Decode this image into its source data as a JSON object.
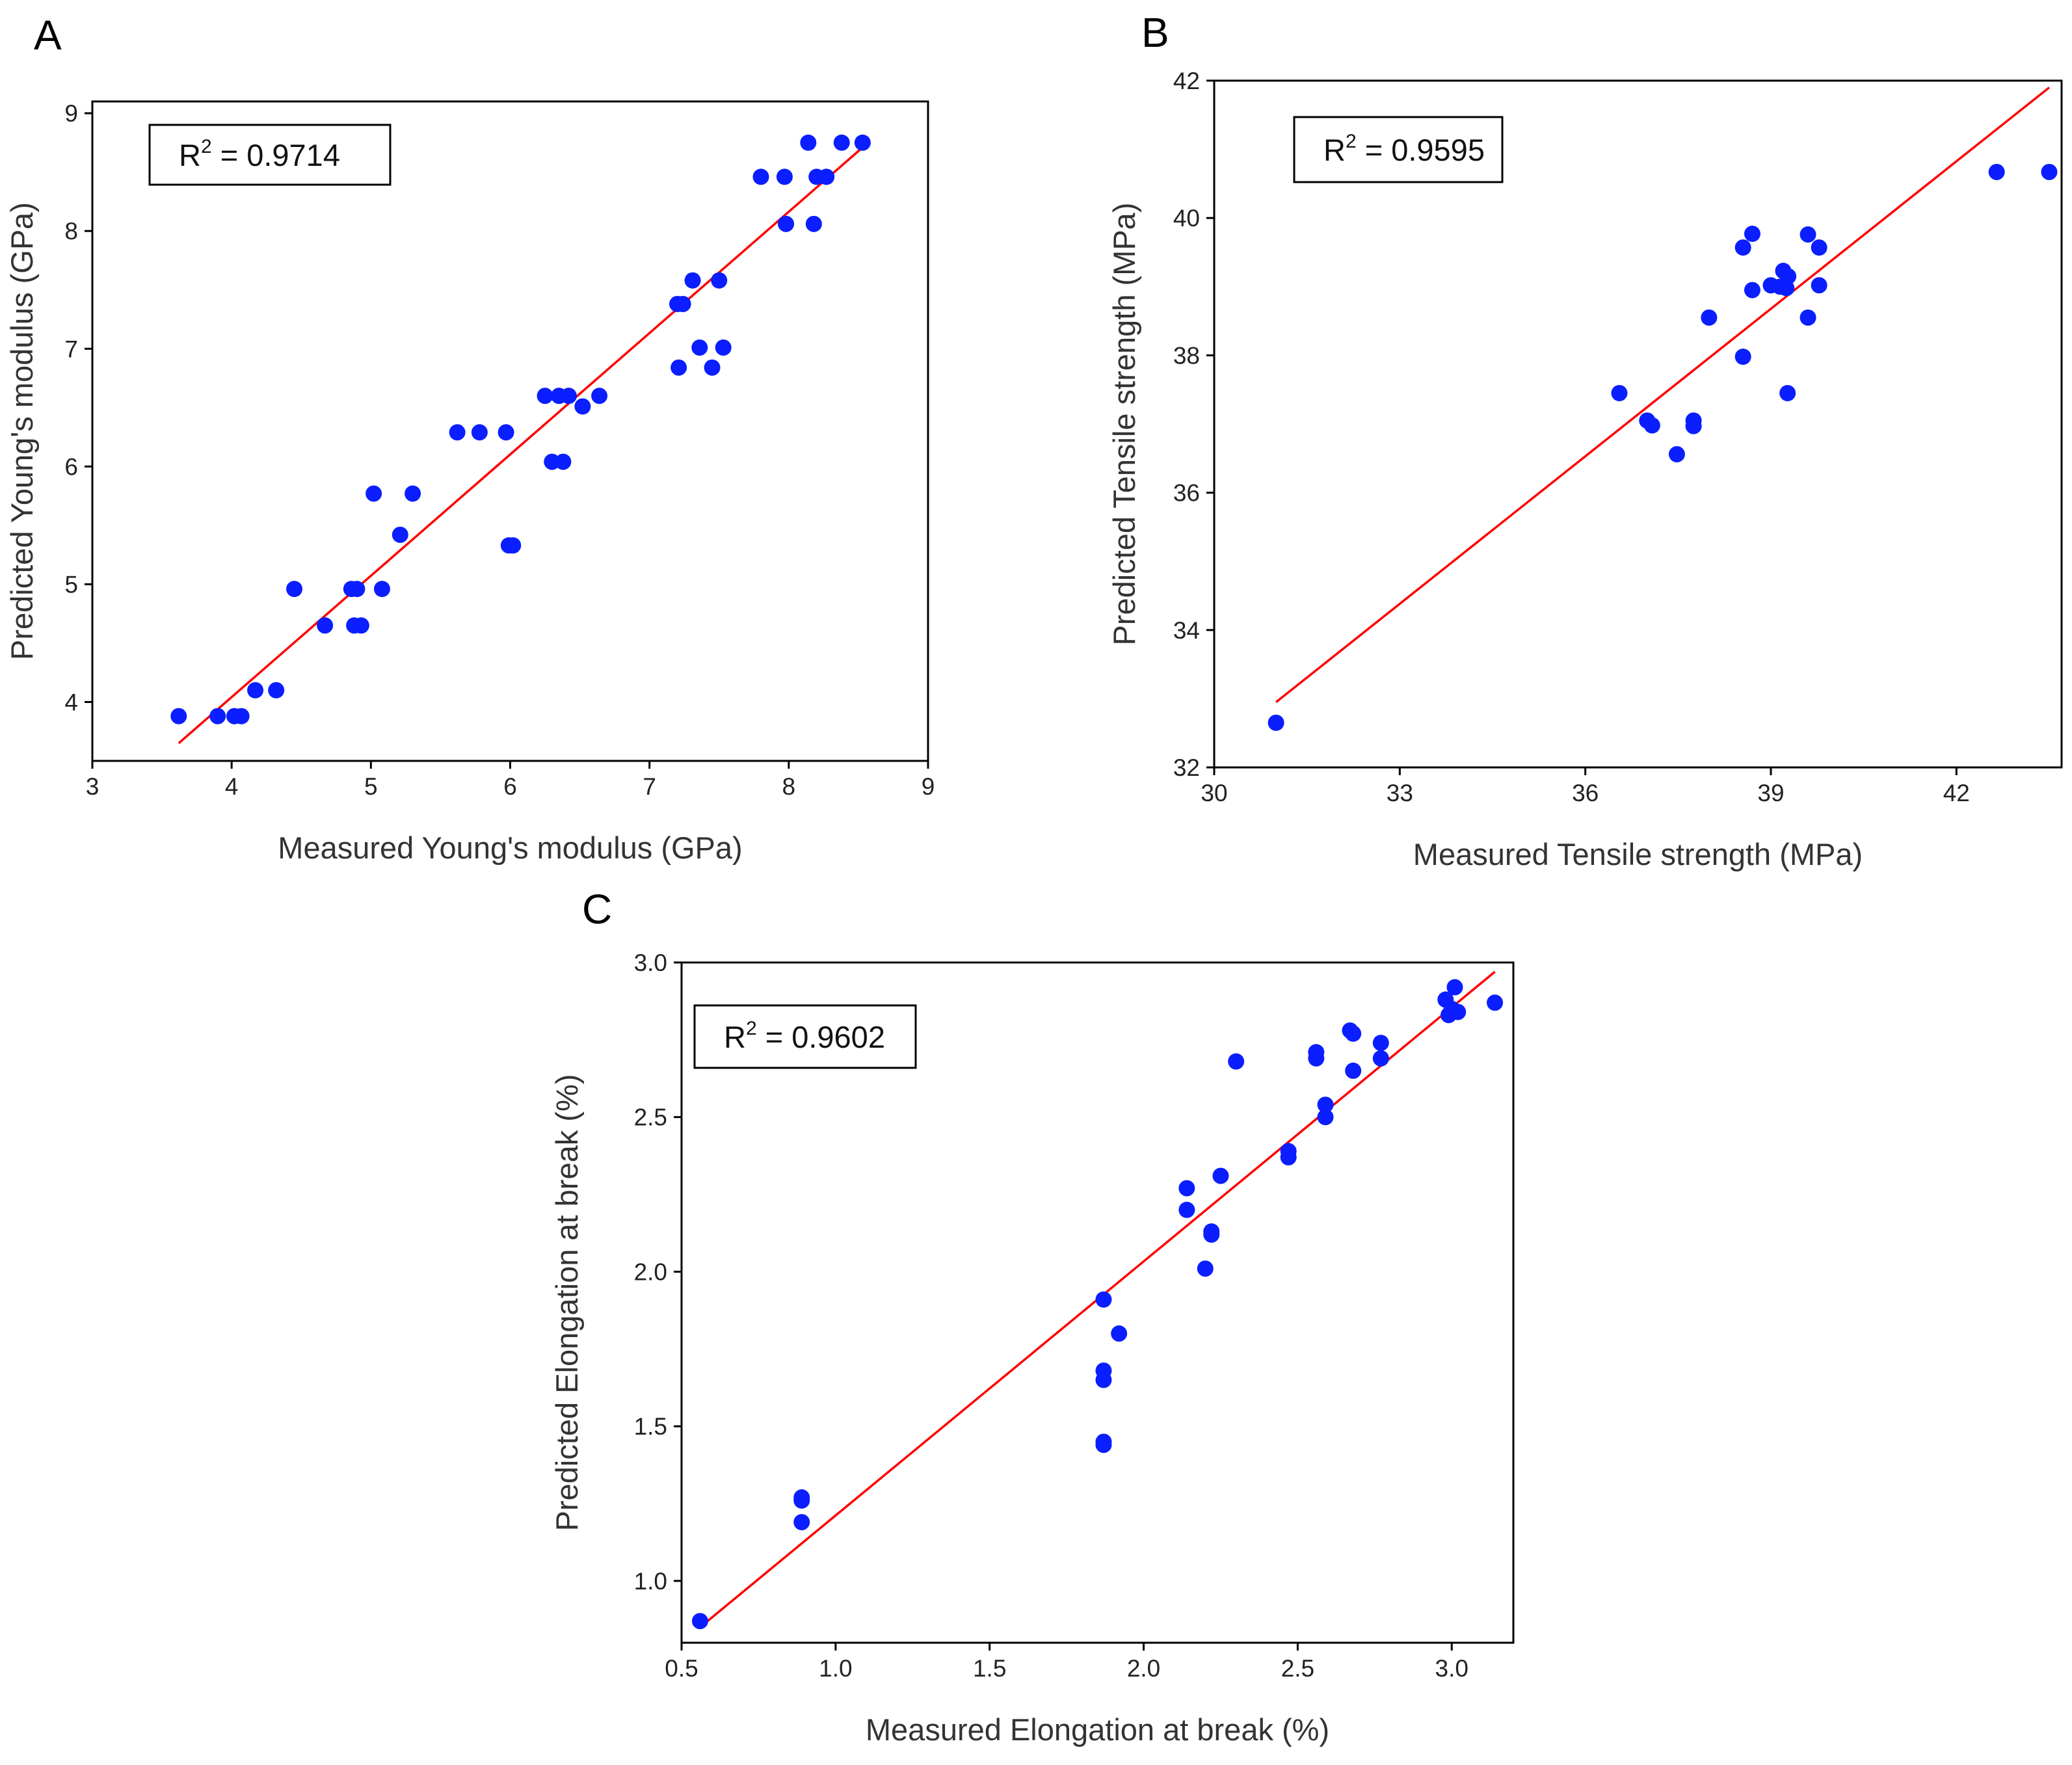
{
  "chart_data": [
    {
      "type": "scatter",
      "panel_label": "A",
      "xlabel": "Measured Young's modulus (GPa)",
      "ylabel": "Predicted Young's modulus (GPa)",
      "xlim": [
        3,
        9
      ],
      "ylim": [
        3.5,
        9.1
      ],
      "xticks": [
        3,
        4,
        5,
        6,
        7,
        8,
        9
      ],
      "yticks": [
        4,
        5,
        6,
        7,
        8,
        9
      ],
      "r2": {
        "prefix": "R",
        "sup": "2",
        "value": " = 0.9714"
      },
      "fit_line": {
        "x": [
          3.62,
          8.55
        ],
        "y": [
          3.65,
          8.73
        ]
      },
      "points": [
        {
          "x": 3.62,
          "y": 3.88
        },
        {
          "x": 3.9,
          "y": 3.88
        },
        {
          "x": 4.02,
          "y": 3.88
        },
        {
          "x": 4.07,
          "y": 3.88
        },
        {
          "x": 4.17,
          "y": 4.1
        },
        {
          "x": 4.32,
          "y": 4.1
        },
        {
          "x": 4.45,
          "y": 4.96
        },
        {
          "x": 4.67,
          "y": 4.65
        },
        {
          "x": 4.86,
          "y": 4.96
        },
        {
          "x": 4.88,
          "y": 4.65
        },
        {
          "x": 4.93,
          "y": 4.65
        },
        {
          "x": 4.9,
          "y": 4.96
        },
        {
          "x": 5.02,
          "y": 5.77
        },
        {
          "x": 5.08,
          "y": 4.96
        },
        {
          "x": 5.21,
          "y": 5.42
        },
        {
          "x": 5.3,
          "y": 5.77
        },
        {
          "x": 5.62,
          "y": 6.29
        },
        {
          "x": 5.78,
          "y": 6.29
        },
        {
          "x": 5.97,
          "y": 6.29
        },
        {
          "x": 5.99,
          "y": 5.33
        },
        {
          "x": 6.02,
          "y": 5.33
        },
        {
          "x": 6.25,
          "y": 6.6
        },
        {
          "x": 6.3,
          "y": 6.04
        },
        {
          "x": 6.35,
          "y": 6.6
        },
        {
          "x": 6.38,
          "y": 6.04
        },
        {
          "x": 6.42,
          "y": 6.6
        },
        {
          "x": 6.52,
          "y": 6.51
        },
        {
          "x": 6.64,
          "y": 6.6
        },
        {
          "x": 7.2,
          "y": 7.38
        },
        {
          "x": 7.21,
          "y": 6.84
        },
        {
          "x": 7.24,
          "y": 7.38
        },
        {
          "x": 7.31,
          "y": 7.58
        },
        {
          "x": 7.36,
          "y": 7.01
        },
        {
          "x": 7.45,
          "y": 6.84
        },
        {
          "x": 7.5,
          "y": 7.58
        },
        {
          "x": 7.53,
          "y": 7.01
        },
        {
          "x": 7.8,
          "y": 8.46
        },
        {
          "x": 7.97,
          "y": 8.46
        },
        {
          "x": 7.98,
          "y": 8.06
        },
        {
          "x": 8.14,
          "y": 8.75
        },
        {
          "x": 8.18,
          "y": 8.06
        },
        {
          "x": 8.2,
          "y": 8.46
        },
        {
          "x": 8.27,
          "y": 8.46
        },
        {
          "x": 8.38,
          "y": 8.75
        },
        {
          "x": 8.53,
          "y": 8.75
        }
      ]
    },
    {
      "type": "scatter",
      "panel_label": "B",
      "xlabel": "Measured Tensile strength (MPa)",
      "ylabel": "Predicted Tensile strength (MPa)",
      "xlim": [
        30,
        43.7
      ],
      "ylim": [
        32,
        42
      ],
      "xticks": [
        30,
        33,
        36,
        39,
        42
      ],
      "yticks": [
        32,
        34,
        36,
        38,
        40,
        42
      ],
      "r2": {
        "prefix": "R",
        "sup": "2",
        "value": " = 0.9595"
      },
      "fit_line": {
        "x": [
          31.0,
          43.5
        ],
        "y": [
          32.95,
          41.9
        ]
      },
      "points": [
        {
          "x": 31.0,
          "y": 32.65
        },
        {
          "x": 36.55,
          "y": 37.45
        },
        {
          "x": 37.0,
          "y": 37.05
        },
        {
          "x": 37.08,
          "y": 36.98
        },
        {
          "x": 37.48,
          "y": 36.56
        },
        {
          "x": 37.75,
          "y": 37.05
        },
        {
          "x": 37.75,
          "y": 36.97
        },
        {
          "x": 38.0,
          "y": 38.55
        },
        {
          "x": 38.55,
          "y": 37.98
        },
        {
          "x": 38.55,
          "y": 39.57
        },
        {
          "x": 38.7,
          "y": 39.77
        },
        {
          "x": 38.7,
          "y": 38.95
        },
        {
          "x": 39.0,
          "y": 39.02
        },
        {
          "x": 39.15,
          "y": 39.0
        },
        {
          "x": 39.2,
          "y": 39.23
        },
        {
          "x": 39.25,
          "y": 38.98
        },
        {
          "x": 39.28,
          "y": 39.15
        },
        {
          "x": 39.27,
          "y": 37.45
        },
        {
          "x": 39.6,
          "y": 39.76
        },
        {
          "x": 39.6,
          "y": 38.55
        },
        {
          "x": 39.78,
          "y": 39.57
        },
        {
          "x": 39.78,
          "y": 39.02
        },
        {
          "x": 42.65,
          "y": 40.67
        },
        {
          "x": 43.5,
          "y": 40.67
        }
      ]
    },
    {
      "type": "scatter",
      "panel_label": "C",
      "xlabel": "Measured Elongation at break (%)",
      "ylabel": "Predicted Elongation at break (%)",
      "xlim": [
        0.5,
        3.2
      ],
      "ylim": [
        0.8,
        3.0
      ],
      "xticks": [
        "0.5",
        "1.0",
        "1.5",
        "2.0",
        "2.5",
        "3.0"
      ],
      "yticks": [
        "1.0",
        "1.5",
        "2.0",
        "2.5",
        "3.0"
      ],
      "r2": {
        "prefix": "R",
        "sup": "2",
        "value": " = 0.9602"
      },
      "fit_line": {
        "x": [
          0.56,
          3.14
        ],
        "y": [
          0.85,
          2.97
        ]
      },
      "points": [
        {
          "x": 0.56,
          "y": 0.87
        },
        {
          "x": 0.89,
          "y": 1.19
        },
        {
          "x": 0.89,
          "y": 1.26
        },
        {
          "x": 0.89,
          "y": 1.27
        },
        {
          "x": 1.87,
          "y": 1.44
        },
        {
          "x": 1.87,
          "y": 1.45
        },
        {
          "x": 1.87,
          "y": 1.65
        },
        {
          "x": 1.87,
          "y": 1.68
        },
        {
          "x": 1.87,
          "y": 1.91
        },
        {
          "x": 1.92,
          "y": 1.8
        },
        {
          "x": 2.14,
          "y": 2.2
        },
        {
          "x": 2.14,
          "y": 2.27
        },
        {
          "x": 2.2,
          "y": 2.01
        },
        {
          "x": 2.22,
          "y": 2.12
        },
        {
          "x": 2.22,
          "y": 2.13
        },
        {
          "x": 2.25,
          "y": 2.31
        },
        {
          "x": 2.3,
          "y": 2.68
        },
        {
          "x": 2.47,
          "y": 2.37
        },
        {
          "x": 2.47,
          "y": 2.39
        },
        {
          "x": 2.56,
          "y": 2.69
        },
        {
          "x": 2.56,
          "y": 2.71
        },
        {
          "x": 2.59,
          "y": 2.5
        },
        {
          "x": 2.59,
          "y": 2.54
        },
        {
          "x": 2.67,
          "y": 2.78
        },
        {
          "x": 2.68,
          "y": 2.77
        },
        {
          "x": 2.68,
          "y": 2.65
        },
        {
          "x": 2.77,
          "y": 2.74
        },
        {
          "x": 2.77,
          "y": 2.69
        },
        {
          "x": 2.98,
          "y": 2.88
        },
        {
          "x": 2.99,
          "y": 2.83
        },
        {
          "x": 3.0,
          "y": 2.85
        },
        {
          "x": 3.01,
          "y": 2.92
        },
        {
          "x": 3.02,
          "y": 2.84
        },
        {
          "x": 3.14,
          "y": 2.87
        }
      ]
    }
  ]
}
